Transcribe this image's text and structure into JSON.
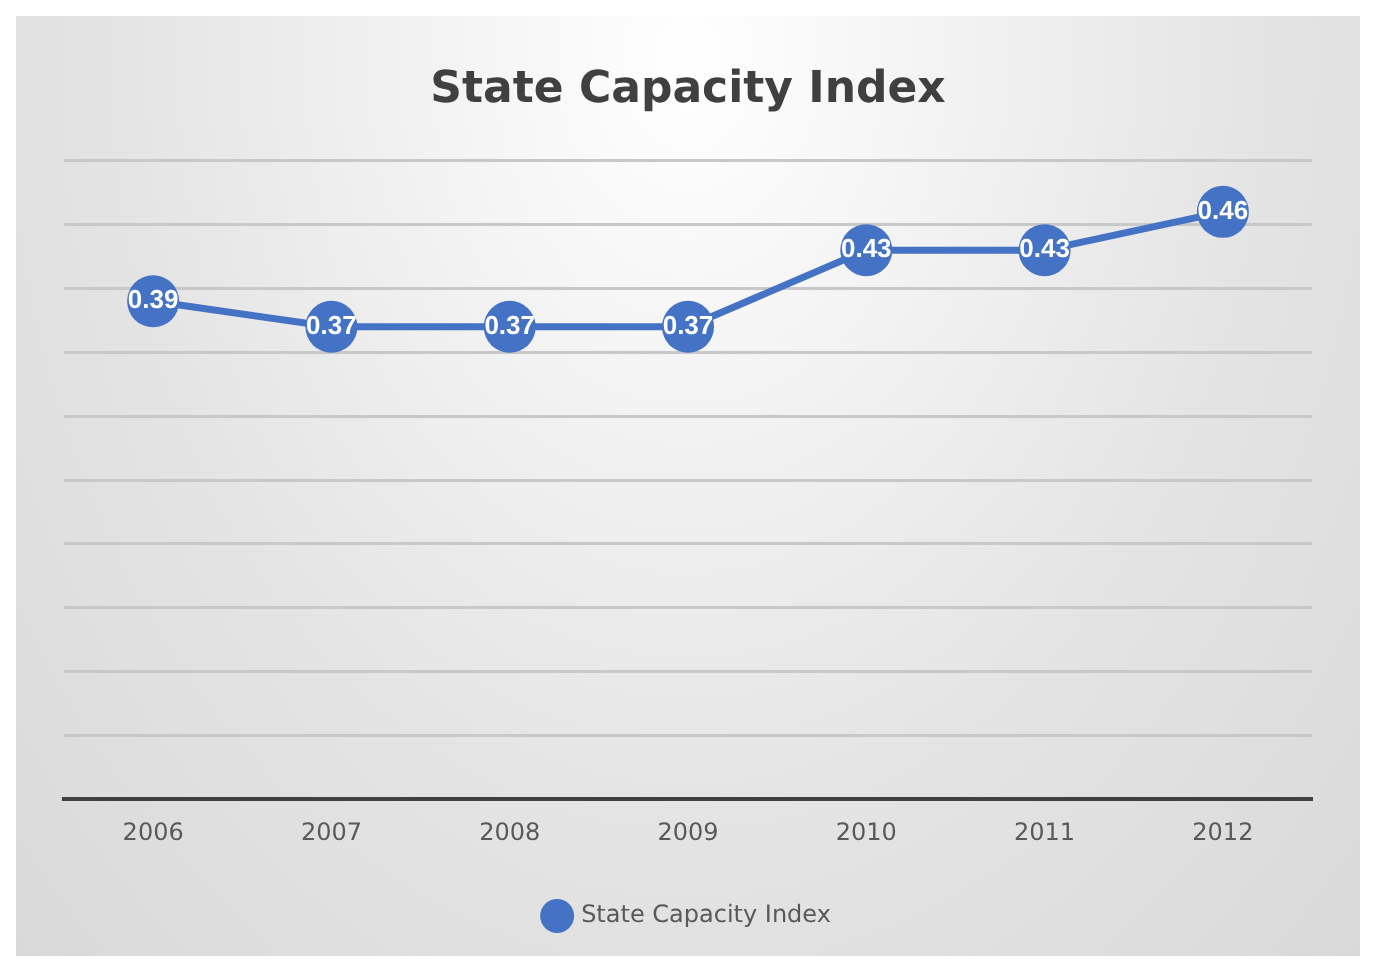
{
  "chart_data": {
    "type": "line",
    "title": "State Capacity Index",
    "categories": [
      "2006",
      "2007",
      "2008",
      "2009",
      "2010",
      "2011",
      "2012"
    ],
    "series": [
      {
        "name": "State Capacity Index",
        "color": "#4472c4",
        "values": [
          0.39,
          0.37,
          0.37,
          0.37,
          0.43,
          0.43,
          0.46
        ]
      }
    ],
    "ylim": [
      0,
      0.5
    ],
    "yticks": [
      {
        "value": 0,
        "label": null
      },
      {
        "value": 0.05,
        "label": null
      },
      {
        "value": 0.1,
        "label": null
      },
      {
        "value": 0.15,
        "label": null
      },
      {
        "value": 0.2,
        "label": null
      },
      {
        "value": 0.25,
        "label": null
      },
      {
        "value": 0.3,
        "label": null
      },
      {
        "value": 0.35,
        "label": null
      },
      {
        "value": 0.4,
        "label": null
      },
      {
        "value": 0.45,
        "label": null
      },
      {
        "value": 0.5,
        "label": null
      }
    ],
    "tick_labels": "x",
    "grid": "y",
    "legend": "bottom",
    "marker": "circle",
    "line_style": "solid",
    "data_labels": true
  }
}
